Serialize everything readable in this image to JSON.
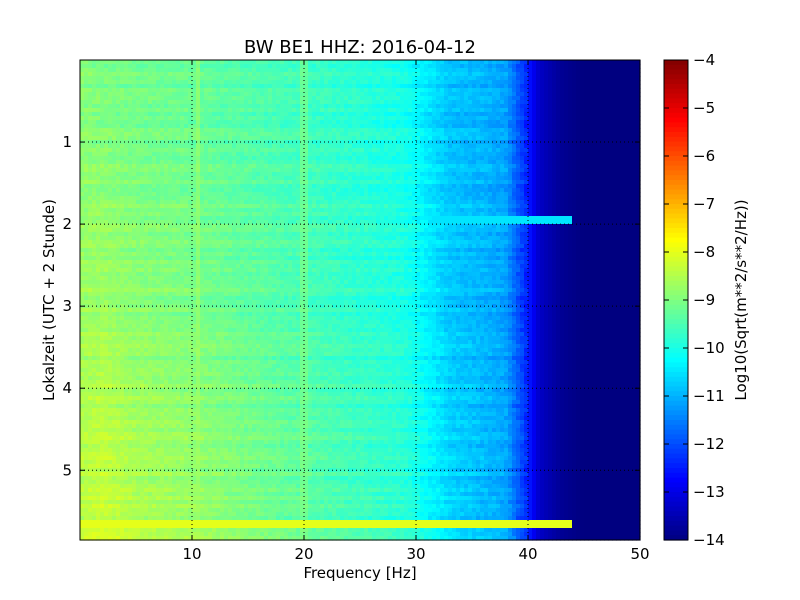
{
  "chart_data": {
    "type": "heatmap",
    "title": "BW BE1 HHZ: 2016-04-12",
    "xlabel": "Frequency [Hz]",
    "ylabel": "Lokalzeit (UTC + 2 Stunde)",
    "xlim": [
      0,
      50
    ],
    "ylim": [
      5.85,
      0
    ],
    "x_ticks": [
      10,
      20,
      30,
      40,
      50
    ],
    "y_ticks": [
      1,
      2,
      3,
      4,
      5
    ],
    "x_tick_labels": [
      "10",
      "20",
      "30",
      "40",
      "50"
    ],
    "y_tick_labels": [
      "1",
      "2",
      "3",
      "4",
      "5"
    ],
    "grid": true,
    "colorbar": {
      "label": "Log10(Sqrt(m**2/s**2/Hz))",
      "range": [
        -14,
        -4
      ],
      "ticks": [
        -4,
        -5,
        -6,
        -7,
        -8,
        -9,
        -10,
        -11,
        -12,
        -13,
        -14
      ],
      "tick_labels": [
        "−4",
        "−5",
        "−6",
        "−7",
        "−8",
        "−9",
        "−10",
        "−11",
        "−12",
        "−13",
        "−14"
      ],
      "colormap": "jet"
    },
    "value_profile": {
      "frequency_hz": [
        0,
        2,
        5,
        10,
        15,
        20,
        25,
        29,
        31,
        33,
        36,
        38,
        40,
        41,
        43,
        45,
        50
      ],
      "value_early": [
        -9.0,
        -9.1,
        -9.2,
        -9.3,
        -9.5,
        -9.7,
        -9.9,
        -10.1,
        -10.5,
        -10.9,
        -11.0,
        -11.2,
        -12.5,
        -13.3,
        -13.8,
        -14.0,
        -14.0
      ],
      "value_late": [
        -8.4,
        -8.2,
        -8.5,
        -8.7,
        -9.0,
        -9.3,
        -9.6,
        -9.8,
        -10.2,
        -10.6,
        -10.9,
        -11.1,
        -12.4,
        -13.3,
        -13.8,
        -14.0,
        -14.0
      ]
    },
    "horizontal_lines": [
      {
        "time_h": 1.95,
        "value": -10.5
      },
      {
        "time_h": 5.65,
        "value": -8.0
      }
    ],
    "vertical_features": [
      {
        "frequency_hz": 20,
        "value": -8.9
      },
      {
        "frequency_hz": 10.5,
        "value": -8.6
      }
    ]
  }
}
